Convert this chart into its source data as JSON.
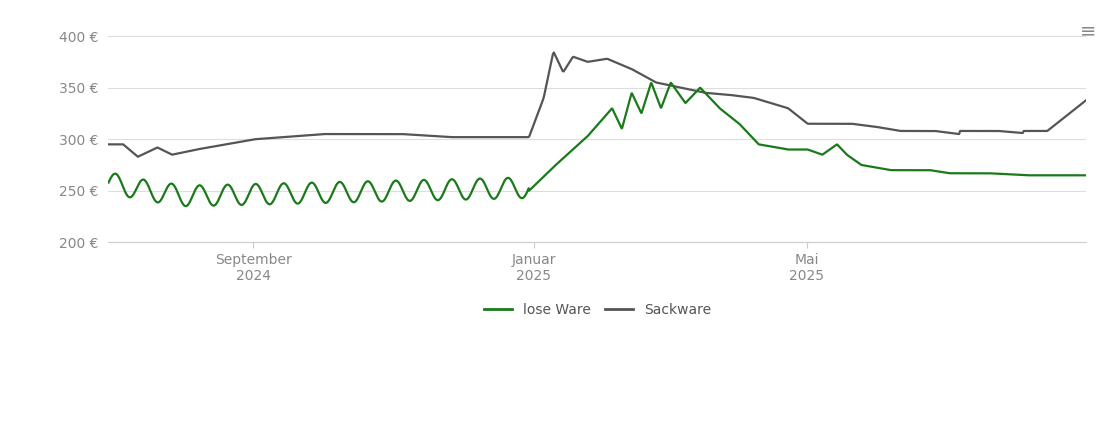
{
  "ylim": [
    200,
    410
  ],
  "yticks": [
    200,
    250,
    300,
    350,
    400
  ],
  "ytick_labels": [
    "200 €",
    "250 €",
    "300 €",
    "350 €",
    "400 €"
  ],
  "xtick_labels": [
    "September\n2024",
    "Januar\n2025",
    "Mai\n2025"
  ],
  "xtick_pos": [
    0.148,
    0.435,
    0.714
  ],
  "background_color": "#ffffff",
  "grid_color": "#dddddd",
  "lose_ware_color": "#1a7a1a",
  "sackware_color": "#555555",
  "legend_lose_ware": "lose Ware",
  "legend_sackware": "Sackware"
}
